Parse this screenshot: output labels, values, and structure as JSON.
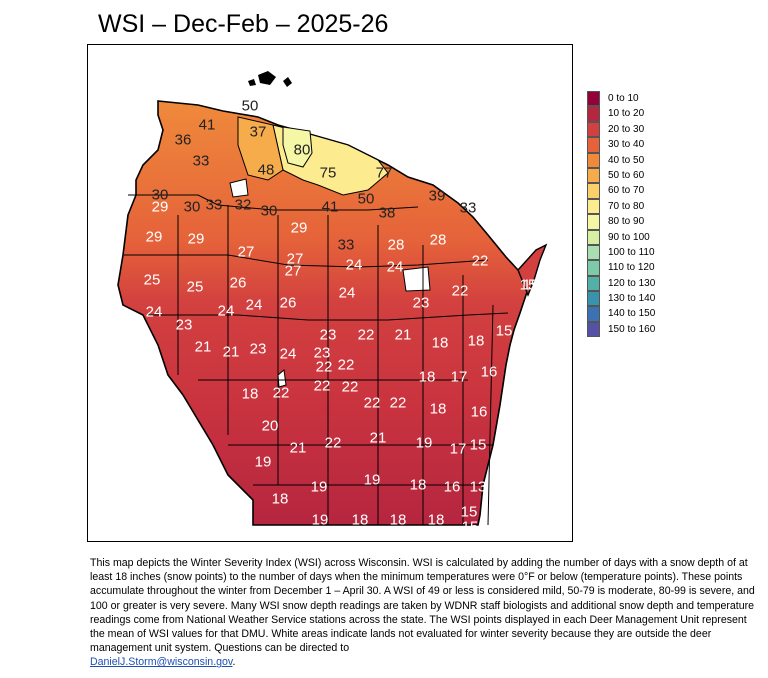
{
  "title": "WSI – Dec-Feb – 2025-26",
  "legend": [
    {
      "label": "0 to 10",
      "color": "#93003a"
    },
    {
      "label": "10 to 20",
      "color": "#b5263f"
    },
    {
      "label": "20 to 30",
      "color": "#d2403f"
    },
    {
      "label": "30 to 40",
      "color": "#e5623a"
    },
    {
      "label": "40 to 50",
      "color": "#ef8a3b"
    },
    {
      "label": "50 to 60",
      "color": "#f7ac4c"
    },
    {
      "label": "60 to 70",
      "color": "#fbd069"
    },
    {
      "label": "70 to 80",
      "color": "#fdeb8f"
    },
    {
      "label": "80 to 90",
      "color": "#f5f6a6"
    },
    {
      "label": "90 to 100",
      "color": "#d7efa3"
    },
    {
      "label": "100 to 110",
      "color": "#a9deb0"
    },
    {
      "label": "110 to 120",
      "color": "#7ccaa8"
    },
    {
      "label": "120 to 130",
      "color": "#52b0a6"
    },
    {
      "label": "130 to 140",
      "color": "#3a93ad"
    },
    {
      "label": "140 to 150",
      "color": "#3c72b2"
    },
    {
      "label": "150 to 160",
      "color": "#5451a6"
    }
  ],
  "dmu_values": [
    {
      "value": "50",
      "color": "#f7ac4c"
    },
    {
      "value": "41",
      "color": "#ef8a3b"
    },
    {
      "value": "37",
      "color": "#e5623a"
    },
    {
      "value": "36",
      "color": "#e5623a"
    },
    {
      "value": "33",
      "color": "#e5623a"
    },
    {
      "value": "48",
      "color": "#ef8a3b"
    },
    {
      "value": "80",
      "color": "#f5f6a6"
    },
    {
      "value": "75",
      "color": "#fdeb8f"
    },
    {
      "value": "77",
      "color": "#fdeb8f"
    },
    {
      "value": "50",
      "color": "#f7ac4c"
    },
    {
      "value": "39",
      "color": "#e5623a"
    },
    {
      "value": "33",
      "color": "#e5623a"
    },
    {
      "value": "30",
      "color": "#e5623a"
    },
    {
      "value": "29",
      "color": "#d2403f"
    },
    {
      "value": "30",
      "color": "#e5623a"
    },
    {
      "value": "33",
      "color": "#e5623a"
    },
    {
      "value": "32",
      "color": "#e5623a"
    },
    {
      "value": "30",
      "color": "#e5623a"
    },
    {
      "value": "29",
      "color": "#d2403f"
    },
    {
      "value": "41",
      "color": "#ef8a3b"
    },
    {
      "value": "38",
      "color": "#e5623a"
    },
    {
      "value": "29",
      "color": "#d2403f"
    },
    {
      "value": "29",
      "color": "#d2403f"
    },
    {
      "value": "27",
      "color": "#d2403f"
    },
    {
      "value": "27",
      "color": "#d2403f"
    },
    {
      "value": "27",
      "color": "#d2403f"
    },
    {
      "value": "33",
      "color": "#e5623a"
    },
    {
      "value": "24",
      "color": "#d2403f"
    },
    {
      "value": "28",
      "color": "#d2403f"
    },
    {
      "value": "24",
      "color": "#d2403f"
    },
    {
      "value": "28",
      "color": "#d2403f"
    },
    {
      "value": "22",
      "color": "#d2403f"
    },
    {
      "value": "25",
      "color": "#d2403f"
    },
    {
      "value": "25",
      "color": "#d2403f"
    },
    {
      "value": "26",
      "color": "#d2403f"
    },
    {
      "value": "24",
      "color": "#d2403f"
    },
    {
      "value": "23",
      "color": "#d2403f"
    },
    {
      "value": "22",
      "color": "#d2403f"
    },
    {
      "value": "15",
      "color": "#b5263f"
    },
    {
      "value": "24",
      "color": "#d2403f"
    },
    {
      "value": "23",
      "color": "#d2403f"
    },
    {
      "value": "24",
      "color": "#d2403f"
    },
    {
      "value": "24",
      "color": "#d2403f"
    },
    {
      "value": "26",
      "color": "#d2403f"
    },
    {
      "value": "23",
      "color": "#d2403f"
    },
    {
      "value": "22",
      "color": "#d2403f"
    },
    {
      "value": "21",
      "color": "#d2403f"
    },
    {
      "value": "18",
      "color": "#b5263f"
    },
    {
      "value": "18",
      "color": "#b5263f"
    },
    {
      "value": "15",
      "color": "#b5263f"
    },
    {
      "value": "21",
      "color": "#d2403f"
    },
    {
      "value": "21",
      "color": "#d2403f"
    },
    {
      "value": "23",
      "color": "#d2403f"
    },
    {
      "value": "24",
      "color": "#d2403f"
    },
    {
      "value": "23",
      "color": "#d2403f"
    },
    {
      "value": "22",
      "color": "#d2403f"
    },
    {
      "value": "22",
      "color": "#d2403f"
    },
    {
      "value": "18",
      "color": "#b5263f"
    },
    {
      "value": "17",
      "color": "#b5263f"
    },
    {
      "value": "16",
      "color": "#b5263f"
    },
    {
      "value": "18",
      "color": "#b5263f"
    },
    {
      "value": "22",
      "color": "#d2403f"
    },
    {
      "value": "22",
      "color": "#d2403f"
    },
    {
      "value": "22",
      "color": "#d2403f"
    },
    {
      "value": "22",
      "color": "#d2403f"
    },
    {
      "value": "22",
      "color": "#d2403f"
    },
    {
      "value": "18",
      "color": "#b5263f"
    },
    {
      "value": "16",
      "color": "#b5263f"
    },
    {
      "value": "20",
      "color": "#d2403f"
    },
    {
      "value": "21",
      "color": "#d2403f"
    },
    {
      "value": "22",
      "color": "#d2403f"
    },
    {
      "value": "21",
      "color": "#d2403f"
    },
    {
      "value": "19",
      "color": "#b5263f"
    },
    {
      "value": "17",
      "color": "#b5263f"
    },
    {
      "value": "15",
      "color": "#b5263f"
    },
    {
      "value": "19",
      "color": "#b5263f"
    },
    {
      "value": "19",
      "color": "#b5263f"
    },
    {
      "value": "19",
      "color": "#b5263f"
    },
    {
      "value": "18",
      "color": "#b5263f"
    },
    {
      "value": "16",
      "color": "#b5263f"
    },
    {
      "value": "13",
      "color": "#b5263f"
    },
    {
      "value": "18",
      "color": "#b5263f"
    },
    {
      "value": "19",
      "color": "#b5263f"
    },
    {
      "value": "18",
      "color": "#b5263f"
    },
    {
      "value": "18",
      "color": "#b5263f"
    },
    {
      "value": "18",
      "color": "#b5263f"
    },
    {
      "value": "15",
      "color": "#b5263f"
    },
    {
      "value": "15",
      "color": "#b5263f"
    },
    {
      "value": "15",
      "color": "#b5263f"
    }
  ],
  "caption": {
    "text": "This map depicts the Winter Severity Index (WSI) across Wisconsin. WSI is calculated by adding the number of days with a snow depth of at least 18 inches (snow points) to the number of days when the minimum temperatures were 0°F or below (temperature points). These points accumulate throughout the winter from December 1 – April 30. A WSI of 49 or less is considered mild, 50-79 is moderate, 80-99 is severe, and 100 or greater is very severe. Many WSI snow depth readings are taken by WDNR staff biologists and additional snow depth and temperature readings come from National Weather Service stations across the state. The WSI points displayed in each Deer Management Unit represent the mean of WSI values for that DMU. White areas indicate lands not evaluated for winter severity because they are outside the deer management unit system. Questions can be directed to",
    "email": "DanielJ.Storm@wisconsin.gov",
    "tail": "."
  }
}
